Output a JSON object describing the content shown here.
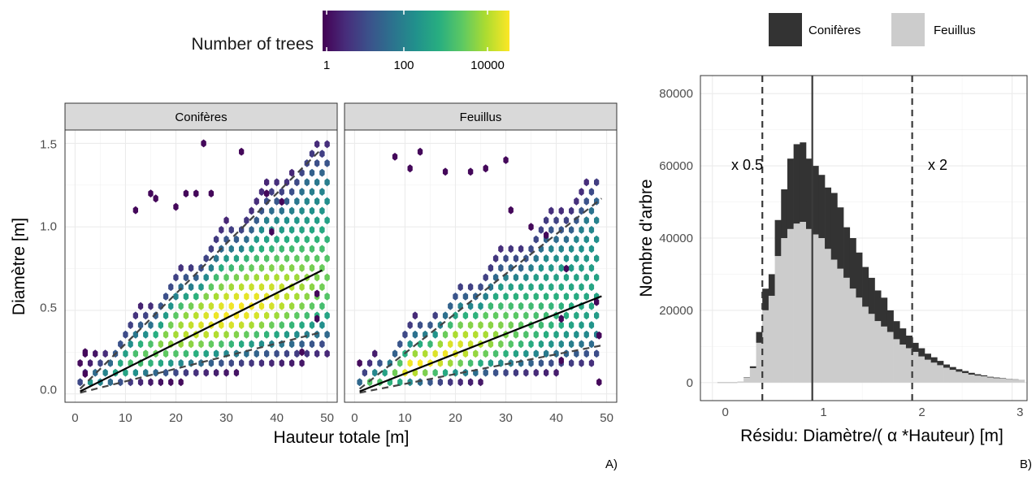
{
  "colorbar": {
    "title": "Number of trees",
    "ticks": [
      "1",
      "100",
      "10000"
    ],
    "scale": "log10",
    "palette": [
      "#440154",
      "#472d7b",
      "#3b528b",
      "#2c728e",
      "#21918c",
      "#28ae80",
      "#5ec962",
      "#addc30",
      "#fde725"
    ]
  },
  "panel_a": {
    "tag": "A)",
    "xlabel": "Hauteur totale [m]",
    "ylabel": "Diamètre [m]",
    "x_ticks": [
      "0",
      "10",
      "20",
      "30",
      "40",
      "50"
    ],
    "y_ticks": [
      "0.0",
      "0.5",
      "1.0",
      "1.5"
    ],
    "facets": [
      "Conifères",
      "Feuillus"
    ]
  },
  "panel_b": {
    "tag": "B)",
    "legend": [
      "Conifères",
      "Feuillus"
    ],
    "xlabel": "Résidu: Diamètre/( α *Hauteur) [m]",
    "ylabel": "Nombre d'arbre",
    "x_ticks": [
      "0",
      "1",
      "2",
      "3"
    ],
    "y_ticks": [
      "0",
      "20000",
      "40000",
      "60000",
      "80000"
    ],
    "annot_left": "x 0.5",
    "annot_right": "x 2"
  },
  "chart_data": [
    {
      "type": "heatmap",
      "subtype": "hexbin",
      "xlim": [
        -2,
        52
      ],
      "ylim": [
        -0.05,
        1.58
      ],
      "colour_scale": "log10 count, 1 to 10000+",
      "colors": {
        "conifer": "#333333",
        "feuillu": "#cccccc",
        "fit": "#000000",
        "bound": "#444444"
      },
      "facets": [
        {
          "name": "Conifères",
          "fit_line": {
            "x": [
              1,
              49
            ],
            "y": [
              0.015,
              0.74
            ]
          },
          "upper_bound": {
            "x": [
              1,
              49
            ],
            "y": [
              0.03,
              1.47
            ]
          },
          "lower_bound": {
            "x": [
              1,
              49
            ],
            "y": [
              0.007,
              0.37
            ]
          },
          "shape": {
            "xmax": 50,
            "slope": 0.0155,
            "spread": 0.6,
            "dmax": 1.52,
            "hx": 34,
            "hy": 0.45
          },
          "points": [
            [
              12,
              1.1
            ],
            [
              15,
              1.2
            ],
            [
              16,
              1.17
            ],
            [
              20,
              1.12
            ],
            [
              22,
              1.2
            ],
            [
              24,
              1.2
            ],
            [
              27,
              1.2
            ],
            [
              25.5,
              1.5
            ],
            [
              33,
              1.45
            ],
            [
              38,
              1.2
            ],
            [
              41,
              1.15
            ],
            [
              39,
              0.97
            ],
            [
              2,
              0.25
            ],
            [
              2,
              0.12
            ],
            [
              45,
              0.25
            ],
            [
              48,
              0.45
            ],
            [
              48,
              0.6
            ]
          ]
        },
        {
          "name": "Feuillus",
          "fit_line": {
            "x": [
              1,
              49
            ],
            "y": [
              0.015,
              0.585
            ]
          },
          "upper_bound": {
            "x": [
              1,
              49
            ],
            "y": [
              0.03,
              1.17
            ]
          },
          "lower_bound": {
            "x": [
              1,
              49
            ],
            "y": [
              0.007,
              0.29
            ]
          },
          "shape": {
            "xmax": 48,
            "slope": 0.013,
            "spread": 0.7,
            "dmax": 1.45,
            "hx": 14,
            "hy": 0.18
          },
          "points": [
            [
              8,
              1.42
            ],
            [
              11,
              1.35
            ],
            [
              13,
              1.45
            ],
            [
              18,
              1.33
            ],
            [
              23,
              1.33
            ],
            [
              26,
              1.35
            ],
            [
              30,
              1.4
            ],
            [
              31,
              1.1
            ],
            [
              35,
              1.0
            ],
            [
              38,
              0.95
            ],
            [
              42,
              0.75
            ],
            [
              41,
              0.45
            ],
            [
              48,
              0.55
            ],
            [
              48.5,
              0.35
            ],
            [
              48.5,
              0.07
            ],
            [
              41,
              0.2
            ]
          ]
        }
      ]
    },
    {
      "type": "bar",
      "subtype": "stacked histogram",
      "series_names": [
        "Conifères",
        "Feuillus"
      ],
      "colors": {
        "Conifères": "#333333",
        "Feuillus": "#cccccc"
      },
      "xlim": [
        -0.12,
        3.15
      ],
      "ylim": [
        -5000,
        85000
      ],
      "bin_width": 0.0625,
      "bins_start": [
        0.25,
        0.3125,
        0.375,
        0.4375,
        0.5,
        0.5625,
        0.625,
        0.6875,
        0.75,
        0.8125,
        0.875,
        0.9375,
        1.0,
        1.0625,
        1.125,
        1.1875,
        1.25,
        1.3125,
        1.375,
        1.4375,
        1.5,
        1.5625,
        1.625,
        1.6875,
        1.75,
        1.8125,
        1.875,
        1.9375,
        2.0,
        2.0625,
        2.125,
        2.1875,
        2.25,
        2.3125,
        2.375,
        2.4375,
        2.5,
        2.5625,
        2.625,
        2.6875,
        2.75,
        2.8125,
        2.875,
        2.9375,
        3.0,
        3.0625
      ],
      "totals": [
        300,
        1500,
        4500,
        14000,
        26000,
        30000,
        45000,
        53500,
        62000,
        66000,
        66500,
        62000,
        60000,
        57500,
        54000,
        52500,
        48500,
        43000,
        40000,
        36000,
        32000,
        29000,
        25500,
        23500,
        20000,
        17000,
        15000,
        13000,
        11000,
        9500,
        8000,
        7000,
        6000,
        5000,
        4300,
        3700,
        3200,
        2700,
        2300,
        2000,
        1600,
        1400,
        1200,
        1000,
        900,
        750
      ],
      "feuillus": [
        300,
        1400,
        4000,
        11000,
        20000,
        24000,
        35000,
        40000,
        42500,
        44000,
        44500,
        42500,
        41000,
        40000,
        37000,
        34000,
        31500,
        29000,
        26000,
        23500,
        21000,
        19000,
        17000,
        15500,
        14000,
        12000,
        10500,
        9500,
        8500,
        7200,
        6300,
        5500,
        4800,
        4100,
        3500,
        3000,
        2600,
        2200,
        1900,
        1700,
        1400,
        1200,
        1050,
        900,
        800,
        700
      ],
      "vlines_solid": [
        1
      ],
      "vlines_dashed": [
        0.5,
        2
      ]
    }
  ]
}
